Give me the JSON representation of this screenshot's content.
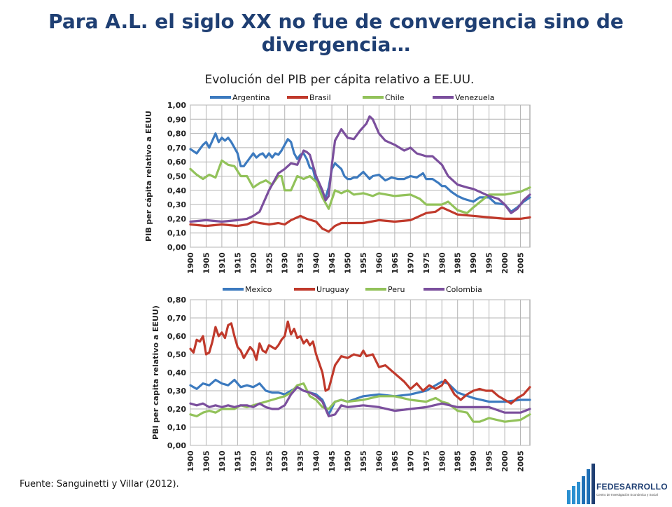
{
  "slide": {
    "title": "Para A.L. el siglo XX no fue de convergencia sino de divergencia…",
    "source": "Fuente: Sanguinetti y Villar (2012).",
    "logo": {
      "name": "FEDESARROLLO",
      "subtitle": "Centro de Investigación Económica y Social"
    }
  },
  "chart_data": [
    {
      "type": "line",
      "title": "Evolución del PIB per cápita relativo a EE.UU.",
      "ylabel": "PIB per cápita relativo a EEUU",
      "ylim": [
        0,
        1
      ],
      "ytick_step": 0.1,
      "y_ticks": [
        "0,00",
        "0,10",
        "0,20",
        "0,30",
        "0,40",
        "0,50",
        "0,60",
        "0,70",
        "0,80",
        "0,90",
        "1,00"
      ],
      "xlim": [
        1900,
        2008
      ],
      "x_ticks": [
        "1900",
        "1905",
        "1910",
        "1915",
        "1920",
        "1925",
        "1930",
        "1935",
        "1940",
        "1945",
        "1950",
        "1955",
        "1960",
        "1965",
        "1970",
        "1975",
        "1980",
        "1985",
        "1990",
        "1995",
        "2000",
        "2005"
      ],
      "grid": true,
      "legend": "top",
      "series": [
        {
          "name": "Argentina",
          "color": "#3c7abf",
          "x": [
            1900,
            1902,
            1904,
            1905,
            1906,
            1908,
            1909,
            1910,
            1911,
            1912,
            1913,
            1914,
            1915,
            1916,
            1917,
            1918,
            1919,
            1920,
            1921,
            1922,
            1923,
            1924,
            1925,
            1926,
            1927,
            1928,
            1929,
            1930,
            1931,
            1932,
            1933,
            1934,
            1935,
            1936,
            1937,
            1938,
            1939,
            1940,
            1941,
            1942,
            1943,
            1944,
            1945,
            1946,
            1947,
            1948,
            1949,
            1950,
            1951,
            1952,
            1953,
            1955,
            1957,
            1958,
            1960,
            1962,
            1964,
            1966,
            1968,
            1970,
            1972,
            1974,
            1975,
            1977,
            1979,
            1980,
            1981,
            1983,
            1985,
            1987,
            1990,
            1992,
            1995,
            1997,
            2000,
            2002,
            2004,
            2006,
            2008
          ],
          "y": [
            0.69,
            0.66,
            0.72,
            0.74,
            0.7,
            0.8,
            0.74,
            0.77,
            0.75,
            0.77,
            0.74,
            0.7,
            0.66,
            0.57,
            0.57,
            0.6,
            0.63,
            0.66,
            0.63,
            0.65,
            0.66,
            0.63,
            0.66,
            0.63,
            0.66,
            0.65,
            0.68,
            0.72,
            0.76,
            0.74,
            0.66,
            0.62,
            0.65,
            0.66,
            0.62,
            0.56,
            0.55,
            0.46,
            0.42,
            0.37,
            0.35,
            0.42,
            0.55,
            0.59,
            0.57,
            0.55,
            0.5,
            0.48,
            0.48,
            0.49,
            0.49,
            0.53,
            0.48,
            0.5,
            0.51,
            0.47,
            0.49,
            0.48,
            0.48,
            0.5,
            0.49,
            0.52,
            0.48,
            0.48,
            0.45,
            0.43,
            0.43,
            0.39,
            0.36,
            0.34,
            0.32,
            0.35,
            0.35,
            0.31,
            0.3,
            0.25,
            0.28,
            0.32,
            0.35
          ]
        },
        {
          "name": "Brasil",
          "color": "#c0392b",
          "x": [
            1900,
            1905,
            1910,
            1915,
            1918,
            1920,
            1922,
            1925,
            1928,
            1930,
            1932,
            1935,
            1937,
            1940,
            1942,
            1944,
            1946,
            1948,
            1950,
            1955,
            1960,
            1965,
            1970,
            1975,
            1978,
            1980,
            1982,
            1985,
            1990,
            1995,
            2000,
            2005,
            2008
          ],
          "y": [
            0.16,
            0.15,
            0.16,
            0.15,
            0.16,
            0.18,
            0.17,
            0.16,
            0.17,
            0.16,
            0.19,
            0.22,
            0.2,
            0.18,
            0.13,
            0.11,
            0.15,
            0.17,
            0.17,
            0.17,
            0.19,
            0.18,
            0.19,
            0.24,
            0.25,
            0.28,
            0.26,
            0.23,
            0.22,
            0.21,
            0.2,
            0.2,
            0.21
          ]
        },
        {
          "name": "Chile",
          "color": "#92c25a",
          "x": [
            1900,
            1902,
            1904,
            1906,
            1908,
            1910,
            1912,
            1914,
            1916,
            1918,
            1920,
            1922,
            1924,
            1926,
            1928,
            1929,
            1930,
            1932,
            1934,
            1936,
            1938,
            1940,
            1942,
            1944,
            1946,
            1948,
            1950,
            1952,
            1955,
            1958,
            1960,
            1965,
            1970,
            1973,
            1975,
            1978,
            1980,
            1982,
            1985,
            1988,
            1990,
            1995,
            2000,
            2005,
            2008
          ],
          "y": [
            0.55,
            0.51,
            0.48,
            0.51,
            0.49,
            0.61,
            0.58,
            0.57,
            0.5,
            0.5,
            0.42,
            0.45,
            0.47,
            0.44,
            0.5,
            0.5,
            0.4,
            0.4,
            0.5,
            0.48,
            0.5,
            0.46,
            0.35,
            0.27,
            0.4,
            0.38,
            0.4,
            0.37,
            0.38,
            0.36,
            0.38,
            0.36,
            0.37,
            0.34,
            0.3,
            0.3,
            0.3,
            0.32,
            0.26,
            0.24,
            0.28,
            0.37,
            0.37,
            0.39,
            0.42
          ]
        },
        {
          "name": "Venezuela",
          "color": "#7b4f9d",
          "x": [
            1900,
            1905,
            1910,
            1915,
            1918,
            1920,
            1922,
            1925,
            1928,
            1930,
            1932,
            1934,
            1936,
            1937,
            1938,
            1940,
            1942,
            1943,
            1944,
            1945,
            1946,
            1948,
            1950,
            1952,
            1954,
            1956,
            1957,
            1958,
            1960,
            1962,
            1965,
            1968,
            1970,
            1972,
            1975,
            1977,
            1980,
            1982,
            1985,
            1988,
            1990,
            1992,
            1995,
            1998,
            2000,
            2002,
            2004,
            2006,
            2008
          ],
          "y": [
            0.18,
            0.19,
            0.18,
            0.19,
            0.2,
            0.22,
            0.25,
            0.4,
            0.52,
            0.55,
            0.59,
            0.58,
            0.68,
            0.67,
            0.65,
            0.5,
            0.4,
            0.33,
            0.36,
            0.58,
            0.75,
            0.83,
            0.77,
            0.76,
            0.82,
            0.87,
            0.92,
            0.9,
            0.8,
            0.75,
            0.72,
            0.68,
            0.7,
            0.66,
            0.64,
            0.64,
            0.58,
            0.5,
            0.44,
            0.42,
            0.41,
            0.39,
            0.36,
            0.34,
            0.3,
            0.24,
            0.27,
            0.33,
            0.37
          ]
        }
      ]
    },
    {
      "type": "line",
      "title": "",
      "ylabel": "PBI per capita relativo a EEUU)",
      "ylim": [
        0,
        0.8
      ],
      "ytick_step": 0.1,
      "y_ticks": [
        "0,00",
        "0,10",
        "0,20",
        "0,30",
        "0,40",
        "0,50",
        "0,60",
        "0,70",
        "0,80"
      ],
      "xlim": [
        1900,
        2008
      ],
      "x_ticks": [
        "1900",
        "1905",
        "1910",
        "1915",
        "1920",
        "1925",
        "1930",
        "1935",
        "1940",
        "1945",
        "1950",
        "1955",
        "1960",
        "1965",
        "1970",
        "1975",
        "1980",
        "1985",
        "1990",
        "1995",
        "2000",
        "2005"
      ],
      "grid": true,
      "legend": "top",
      "series": [
        {
          "name": "Mexico",
          "color": "#3c7abf",
          "x": [
            1900,
            1902,
            1904,
            1906,
            1908,
            1910,
            1912,
            1914,
            1916,
            1918,
            1920,
            1922,
            1924,
            1926,
            1928,
            1930,
            1932,
            1934,
            1936,
            1938,
            1940,
            1942,
            1944,
            1946,
            1948,
            1950,
            1955,
            1960,
            1965,
            1970,
            1975,
            1980,
            1982,
            1985,
            1990,
            1995,
            2000,
            2005,
            2008
          ],
          "y": [
            0.33,
            0.31,
            0.34,
            0.33,
            0.36,
            0.34,
            0.33,
            0.36,
            0.32,
            0.33,
            0.32,
            0.34,
            0.3,
            0.29,
            0.29,
            0.28,
            0.3,
            0.32,
            0.3,
            0.29,
            0.28,
            0.25,
            0.17,
            0.24,
            0.25,
            0.24,
            0.27,
            0.28,
            0.27,
            0.28,
            0.3,
            0.35,
            0.34,
            0.29,
            0.26,
            0.24,
            0.24,
            0.25,
            0.25
          ]
        },
        {
          "name": "Uruguay",
          "color": "#c0392b",
          "x": [
            1900,
            1901,
            1902,
            1903,
            1904,
            1905,
            1906,
            1907,
            1908,
            1909,
            1910,
            1911,
            1912,
            1913,
            1914,
            1915,
            1916,
            1917,
            1918,
            1919,
            1920,
            1921,
            1922,
            1923,
            1924,
            1925,
            1926,
            1927,
            1928,
            1929,
            1930,
            1931,
            1932,
            1933,
            1934,
            1935,
            1936,
            1937,
            1938,
            1939,
            1940,
            1941,
            1942,
            1943,
            1944,
            1946,
            1948,
            1950,
            1952,
            1954,
            1955,
            1956,
            1958,
            1960,
            1962,
            1964,
            1966,
            1968,
            1970,
            1972,
            1974,
            1976,
            1978,
            1980,
            1981,
            1982,
            1984,
            1986,
            1988,
            1990,
            1992,
            1994,
            1996,
            1998,
            2000,
            2002,
            2004,
            2006,
            2008
          ],
          "y": [
            0.53,
            0.51,
            0.58,
            0.57,
            0.6,
            0.5,
            0.51,
            0.57,
            0.65,
            0.6,
            0.62,
            0.59,
            0.66,
            0.67,
            0.6,
            0.54,
            0.52,
            0.48,
            0.51,
            0.54,
            0.52,
            0.47,
            0.56,
            0.52,
            0.51,
            0.55,
            0.54,
            0.53,
            0.55,
            0.58,
            0.6,
            0.68,
            0.61,
            0.64,
            0.59,
            0.6,
            0.56,
            0.58,
            0.55,
            0.57,
            0.5,
            0.45,
            0.4,
            0.3,
            0.31,
            0.44,
            0.49,
            0.48,
            0.5,
            0.49,
            0.52,
            0.49,
            0.5,
            0.43,
            0.44,
            0.41,
            0.38,
            0.35,
            0.31,
            0.34,
            0.3,
            0.33,
            0.31,
            0.33,
            0.36,
            0.34,
            0.28,
            0.25,
            0.28,
            0.3,
            0.31,
            0.3,
            0.3,
            0.27,
            0.25,
            0.23,
            0.26,
            0.28,
            0.32
          ]
        },
        {
          "name": "Peru",
          "color": "#92c25a",
          "x": [
            1900,
            1902,
            1904,
            1906,
            1908,
            1910,
            1912,
            1914,
            1916,
            1918,
            1920,
            1922,
            1924,
            1926,
            1928,
            1930,
            1932,
            1934,
            1936,
            1938,
            1940,
            1942,
            1944,
            1946,
            1948,
            1950,
            1955,
            1960,
            1965,
            1970,
            1975,
            1978,
            1980,
            1982,
            1985,
            1988,
            1990,
            1992,
            1995,
            2000,
            2005,
            2008
          ],
          "y": [
            0.17,
            0.16,
            0.18,
            0.19,
            0.18,
            0.2,
            0.2,
            0.2,
            0.22,
            0.21,
            0.22,
            0.23,
            0.24,
            0.25,
            0.26,
            0.27,
            0.29,
            0.33,
            0.34,
            0.27,
            0.25,
            0.21,
            0.2,
            0.24,
            0.25,
            0.24,
            0.25,
            0.27,
            0.27,
            0.25,
            0.24,
            0.26,
            0.24,
            0.23,
            0.19,
            0.18,
            0.13,
            0.13,
            0.15,
            0.13,
            0.14,
            0.17
          ]
        },
        {
          "name": "Colombia",
          "color": "#7b4f9d",
          "x": [
            1900,
            1902,
            1904,
            1906,
            1908,
            1910,
            1912,
            1914,
            1916,
            1918,
            1920,
            1922,
            1924,
            1926,
            1928,
            1930,
            1932,
            1934,
            1936,
            1938,
            1940,
            1942,
            1944,
            1946,
            1948,
            1950,
            1955,
            1960,
            1965,
            1970,
            1975,
            1980,
            1985,
            1990,
            1995,
            2000,
            2005,
            2008
          ],
          "y": [
            0.23,
            0.22,
            0.23,
            0.21,
            0.22,
            0.21,
            0.22,
            0.21,
            0.22,
            0.22,
            0.21,
            0.23,
            0.21,
            0.2,
            0.2,
            0.22,
            0.28,
            0.32,
            0.3,
            0.29,
            0.27,
            0.24,
            0.16,
            0.17,
            0.22,
            0.21,
            0.22,
            0.21,
            0.19,
            0.2,
            0.21,
            0.23,
            0.21,
            0.21,
            0.21,
            0.18,
            0.18,
            0.2
          ]
        }
      ]
    }
  ]
}
